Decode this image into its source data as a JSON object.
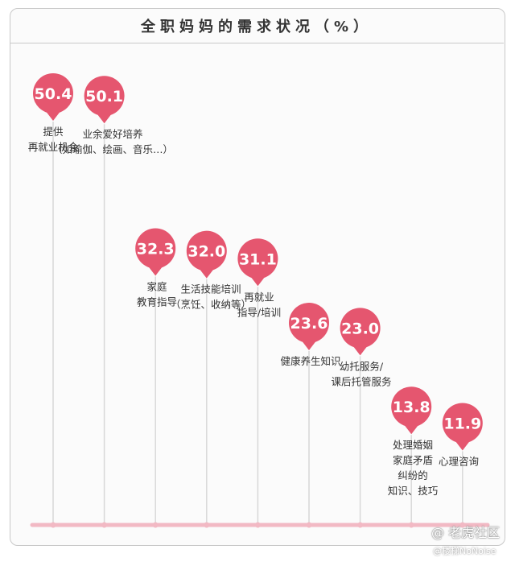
{
  "chart_data": {
    "type": "bar",
    "title": "全职妈妈的需求状况（%）",
    "categories": [
      [
        "提供",
        "再就业机会"
      ],
      [
        "业余爱好培养",
        "（如瑜伽、绘画、音乐…）"
      ],
      [
        "家庭",
        "教育指导"
      ],
      [
        "生活技能培训",
        "（烹饪、收纳等）"
      ],
      [
        "再就业",
        "指导/培训"
      ],
      [
        "健康养生知识"
      ],
      [
        "幼托服务/",
        "课后托管服务"
      ],
      [
        "处理婚姻",
        "家庭矛盾",
        "纠纷的",
        "知识、技巧"
      ],
      [
        "心理咨询"
      ]
    ],
    "values": [
      50.4,
      50.1,
      32.3,
      32.0,
      31.1,
      23.6,
      23.0,
      13.8,
      11.9
    ],
    "value_labels": [
      "50.4",
      "50.1",
      "32.3",
      "32.0",
      "31.1",
      "23.6",
      "23.0",
      "13.8",
      "11.9"
    ],
    "colors": {
      "pin": "#e5566f",
      "stem": "#d8d8d8",
      "baseline": "#f2b9c4",
      "label": "#333333"
    }
  },
  "watermark": {
    "text": "@ 老虎社区",
    "sub": "@楼梯NoNoise"
  }
}
